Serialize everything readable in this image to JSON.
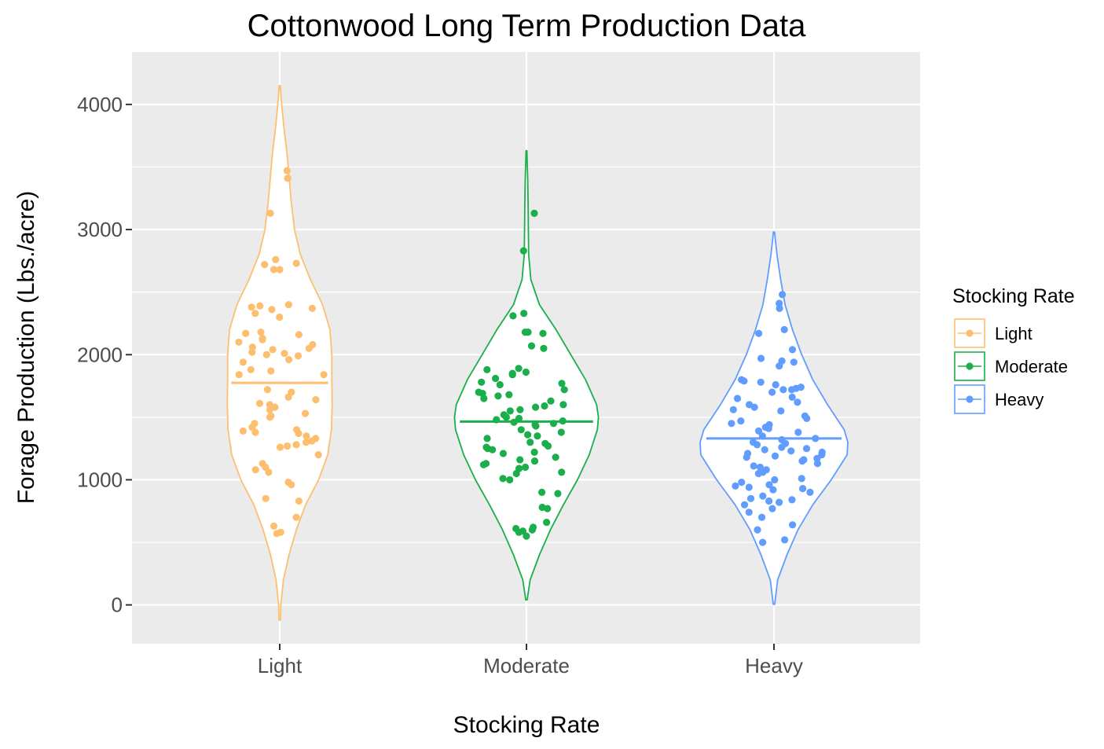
{
  "chart_data": {
    "type": "violin",
    "title": "Cottonwood Long Term Production Data",
    "xlabel": "Stocking Rate",
    "ylabel": "Forage Production (Lbs./acre)",
    "ylim": [
      -310,
      4420
    ],
    "yticks": [
      0,
      1000,
      2000,
      3000,
      4000
    ],
    "grid": true,
    "legend": {
      "title": "Stocking Rate",
      "position": "right"
    },
    "categories": [
      "Light",
      "Moderate",
      "Heavy"
    ],
    "series": [
      {
        "name": "Light",
        "color": "#fdbf6f",
        "median": 1775,
        "range": [
          -120,
          4150
        ],
        "points": [
          3470,
          3410,
          3130,
          2760,
          2730,
          2720,
          2680,
          2680,
          2400,
          2390,
          2380,
          2370,
          2360,
          2330,
          2300,
          2180,
          2170,
          2160,
          2130,
          2120,
          2100,
          2080,
          2060,
          2050,
          2040,
          2020,
          2010,
          2000,
          1990,
          1960,
          1940,
          1880,
          1870,
          1840,
          1840,
          1720,
          1700,
          1660,
          1640,
          1610,
          1600,
          1580,
          1560,
          1530,
          1510,
          1500,
          1450,
          1420,
          1400,
          1390,
          1380,
          1370,
          1350,
          1330,
          1310,
          1300,
          1280,
          1270,
          1260,
          1200,
          1130,
          1100,
          1080,
          1060,
          980,
          960,
          850,
          830,
          700,
          630,
          580,
          570
        ],
        "violin": [
          [
            -120,
            0.2
          ],
          [
            0,
            0.3
          ],
          [
            200,
            1.0
          ],
          [
            400,
            2.5
          ],
          [
            600,
            4.5
          ],
          [
            800,
            7.0
          ],
          [
            1000,
            10.5
          ],
          [
            1200,
            13.0
          ],
          [
            1400,
            14.0
          ],
          [
            1600,
            14.2
          ],
          [
            1800,
            14.1
          ],
          [
            2000,
            14.1
          ],
          [
            2200,
            13.6
          ],
          [
            2400,
            11.6
          ],
          [
            2600,
            8.3
          ],
          [
            2800,
            5.6
          ],
          [
            3000,
            4.0
          ],
          [
            3200,
            3.2
          ],
          [
            3400,
            2.6
          ],
          [
            3600,
            2.0
          ],
          [
            3800,
            1.2
          ],
          [
            4000,
            0.5
          ],
          [
            4150,
            0.15
          ]
        ]
      },
      {
        "name": "Moderate",
        "color": "#1aaf4b",
        "median": 1465,
        "range": [
          40,
          3630
        ],
        "points": [
          3130,
          2830,
          2330,
          2310,
          2180,
          2180,
          2170,
          2070,
          2050,
          1890,
          1880,
          1860,
          1850,
          1840,
          1810,
          1780,
          1770,
          1760,
          1720,
          1700,
          1690,
          1680,
          1670,
          1650,
          1630,
          1600,
          1590,
          1580,
          1560,
          1550,
          1520,
          1500,
          1490,
          1480,
          1470,
          1460,
          1450,
          1440,
          1430,
          1400,
          1380,
          1360,
          1350,
          1330,
          1300,
          1290,
          1270,
          1260,
          1250,
          1240,
          1220,
          1210,
          1180,
          1160,
          1150,
          1130,
          1120,
          1100,
          1090,
          1060,
          1050,
          1010,
          1000,
          900,
          890,
          780,
          770,
          660,
          620,
          610,
          600,
          590,
          580,
          550
        ],
        "violin": [
          [
            40,
            0.2
          ],
          [
            200,
            1.0
          ],
          [
            400,
            3.5
          ],
          [
            600,
            6.5
          ],
          [
            800,
            10.0
          ],
          [
            1000,
            13.8
          ],
          [
            1200,
            17.0
          ],
          [
            1400,
            19.2
          ],
          [
            1500,
            19.5
          ],
          [
            1600,
            19.0
          ],
          [
            1800,
            16.0
          ],
          [
            2000,
            12.0
          ],
          [
            2200,
            8.0
          ],
          [
            2400,
            3.5
          ],
          [
            2600,
            1.2
          ],
          [
            2800,
            0.6
          ],
          [
            3000,
            0.5
          ],
          [
            3200,
            0.45
          ],
          [
            3400,
            0.35
          ],
          [
            3630,
            0.1
          ]
        ]
      },
      {
        "name": "Heavy",
        "color": "#619cff",
        "median": 1330,
        "range": [
          5,
          2980
        ],
        "points": [
          2480,
          2410,
          2370,
          2200,
          2170,
          2040,
          1970,
          1950,
          1940,
          1910,
          1800,
          1790,
          1780,
          1760,
          1740,
          1730,
          1720,
          1720,
          1700,
          1660,
          1650,
          1620,
          1600,
          1580,
          1560,
          1550,
          1510,
          1490,
          1470,
          1450,
          1440,
          1420,
          1410,
          1390,
          1380,
          1350,
          1330,
          1320,
          1300,
          1290,
          1280,
          1260,
          1250,
          1240,
          1230,
          1220,
          1210,
          1200,
          1190,
          1180,
          1170,
          1160,
          1150,
          1130,
          1110,
          1100,
          1080,
          1060,
          1050,
          1010,
          1000,
          980,
          960,
          950,
          940,
          930,
          920,
          900,
          870,
          850,
          840,
          830,
          820,
          800,
          770,
          740,
          700,
          640,
          600,
          520,
          500
        ],
        "violin": [
          [
            5,
            0.2
          ],
          [
            200,
            1.0
          ],
          [
            400,
            3.5
          ],
          [
            600,
            6.5
          ],
          [
            800,
            10.5
          ],
          [
            1000,
            15.5
          ],
          [
            1200,
            19.8
          ],
          [
            1300,
            20.0
          ],
          [
            1400,
            19.0
          ],
          [
            1600,
            14.5
          ],
          [
            1800,
            10.5
          ],
          [
            2000,
            7.5
          ],
          [
            2200,
            5.0
          ],
          [
            2400,
            3.0
          ],
          [
            2600,
            1.8
          ],
          [
            2800,
            0.8
          ],
          [
            2980,
            0.15
          ]
        ]
      }
    ]
  }
}
